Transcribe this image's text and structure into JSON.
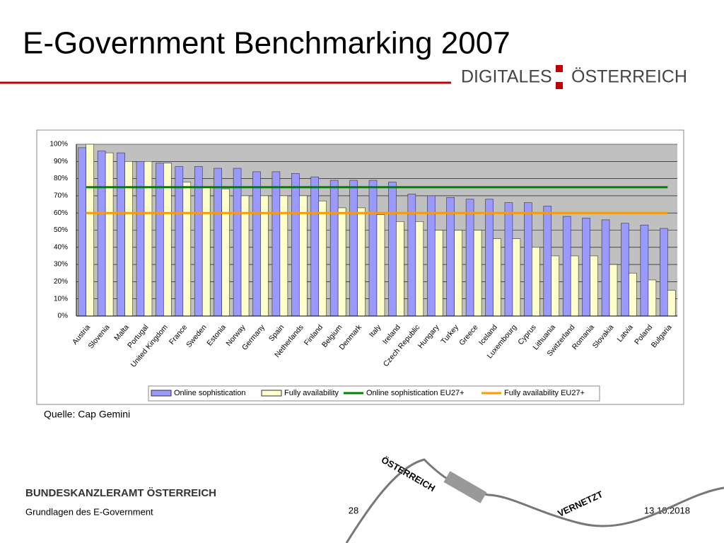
{
  "slide": {
    "title": "E-Government Benchmarking 2007",
    "logo": [
      "DIGITALES",
      "ÖSTERREICH"
    ],
    "source": "Quelle: Cap Gemini",
    "ministry": "BUNDESKANZLERAMT ÖSTERREICH",
    "footer_left": "Grundlagen des E-Government",
    "page": "28",
    "date": "13.10.2018",
    "cable_texts": [
      "ÖSTERREICH",
      "VERNETZT"
    ]
  },
  "chart_data": {
    "type": "bar",
    "categories": [
      "Austria",
      "Slovenia",
      "Malta",
      "Portugal",
      "United Kingdom",
      "France",
      "Sweden",
      "Estonia",
      "Norway",
      "Germany",
      "Spain",
      "Netherlands",
      "Finland",
      "Belgium",
      "Denmark",
      "Italy",
      "Ireland",
      "Czech Republic",
      "Hungary",
      "Turkey",
      "Greece",
      "Iceland",
      "Luxembourg",
      "Cyprus",
      "Lithuania",
      "Switzerland",
      "Romania",
      "Slovakia",
      "Latvia",
      "Poland",
      "Bulgaria"
    ],
    "series": [
      {
        "name": "Online sophistication",
        "color": "#9999ff",
        "kind": "bar",
        "values": [
          98,
          96,
          95,
          90,
          89,
          87,
          87,
          86,
          86,
          84,
          84,
          83,
          81,
          79,
          79,
          79,
          78,
          71,
          70,
          69,
          68,
          68,
          66,
          66,
          64,
          58,
          57,
          56,
          54,
          53,
          51
        ]
      },
      {
        "name": "Fully availability",
        "color": "#ffffcc",
        "kind": "bar",
        "values": [
          100,
          95,
          90,
          90,
          89,
          78,
          75,
          74,
          70,
          70,
          70,
          70,
          67,
          63,
          63,
          59,
          55,
          55,
          50,
          50,
          50,
          45,
          45,
          40,
          35,
          35,
          35,
          30,
          25,
          21,
          15
        ]
      },
      {
        "name": "Online sophistication EU27+",
        "color": "#008000",
        "kind": "line",
        "values": [
          75,
          75,
          75,
          75,
          75,
          75,
          75,
          75,
          75,
          75,
          75,
          75,
          75,
          75,
          75,
          75,
          75,
          75,
          75,
          75,
          75,
          75,
          75,
          75,
          75,
          75,
          75,
          75,
          75,
          75,
          75
        ]
      },
      {
        "name": "Fully availability EU27+",
        "color": "#ff9900",
        "kind": "line",
        "values": [
          60,
          60,
          60,
          60,
          60,
          60,
          60,
          60,
          60,
          60,
          60,
          60,
          60,
          60,
          60,
          60,
          60,
          60,
          60,
          60,
          60,
          60,
          60,
          60,
          60,
          60,
          60,
          60,
          60,
          60,
          60
        ]
      }
    ],
    "ylim": [
      0,
      100
    ],
    "yticks": [
      {
        "value": 0,
        "label": "0%"
      },
      {
        "value": 10,
        "label": "10%"
      },
      {
        "value": 20,
        "label": "20%"
      },
      {
        "value": 30,
        "label": "30%"
      },
      {
        "value": 40,
        "label": "40%"
      },
      {
        "value": 50,
        "label": "50%"
      },
      {
        "value": 60,
        "label": "60%"
      },
      {
        "value": 70,
        "label": "70%"
      },
      {
        "value": 80,
        "label": "80%"
      },
      {
        "value": 90,
        "label": "90%"
      },
      {
        "value": 100,
        "label": "100%"
      }
    ],
    "grid": true,
    "legend": "bottom"
  }
}
